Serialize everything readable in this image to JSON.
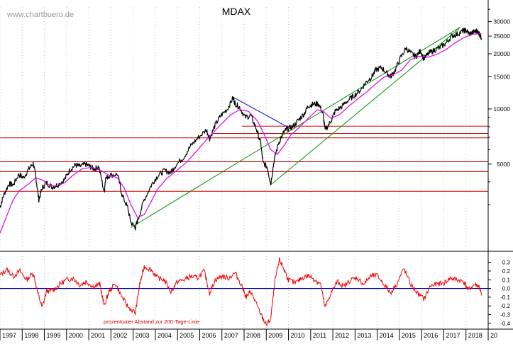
{
  "source_label": "www.chartbuero.de",
  "chart_data": [
    {
      "type": "line",
      "title": "MDAX",
      "scale": "log",
      "x_ticks": [
        "1997",
        "1998",
        "1999",
        "2000",
        "2001",
        "2002",
        "2003",
        "2004",
        "2005",
        "2006",
        "2007",
        "2008",
        "2009",
        "2010",
        "2011",
        "2012",
        "2013",
        "2014",
        "2015",
        "2016",
        "2017",
        "2018",
        "20"
      ],
      "y_tick_labels": [
        "30000",
        "25000",
        "20000",
        "15000",
        "10000",
        "5000"
      ],
      "y_tick_values": [
        30000,
        25000,
        20000,
        15000,
        10000,
        5000
      ],
      "y_minor_values": [
        3000,
        4000,
        6000,
        7000,
        8000,
        9000,
        35000
      ],
      "ylim": [
        1700,
        36000
      ],
      "xlim": [
        1997.0,
        2019.0
      ],
      "grid": true,
      "colors": {
        "price": "#000000",
        "sma": "#e000e0",
        "support_line": "#009000",
        "resistance_line": "#0000cc",
        "horizontal": "#cc0000"
      },
      "price_points": [
        [
          1997.0,
          2900
        ],
        [
          1997.15,
          3350
        ],
        [
          1997.4,
          3900
        ],
        [
          1997.6,
          3850
        ],
        [
          1997.85,
          4400
        ],
        [
          1998.05,
          4200
        ],
        [
          1998.3,
          4700
        ],
        [
          1998.5,
          5050
        ],
        [
          1998.62,
          4200
        ],
        [
          1998.75,
          3200
        ],
        [
          1998.9,
          3700
        ],
        [
          1999.1,
          3950
        ],
        [
          1999.35,
          3750
        ],
        [
          1999.6,
          3850
        ],
        [
          1999.9,
          4100
        ],
        [
          2000.15,
          4650
        ],
        [
          2000.4,
          4950
        ],
        [
          2000.6,
          4850
        ],
        [
          2000.85,
          5000
        ],
        [
          2001.05,
          4850
        ],
        [
          2001.25,
          4700
        ],
        [
          2001.45,
          4850
        ],
        [
          2001.7,
          3500
        ],
        [
          2001.75,
          4150
        ],
        [
          2001.95,
          4350
        ],
        [
          2002.3,
          4400
        ],
        [
          2002.5,
          3400
        ],
        [
          2002.75,
          2900
        ],
        [
          2002.9,
          2400
        ],
        [
          2003.1,
          2250
        ],
        [
          2003.2,
          2450
        ],
        [
          2003.5,
          3200
        ],
        [
          2003.85,
          3900
        ],
        [
          2004.1,
          4300
        ],
        [
          2004.4,
          4600
        ],
        [
          2004.7,
          4500
        ],
        [
          2004.9,
          4900
        ],
        [
          2005.3,
          5500
        ],
        [
          2005.6,
          6300
        ],
        [
          2005.9,
          6900
        ],
        [
          2006.3,
          7700
        ],
        [
          2006.45,
          6900
        ],
        [
          2006.7,
          8200
        ],
        [
          2006.95,
          9200
        ],
        [
          2007.25,
          10000
        ],
        [
          2007.5,
          11500
        ],
        [
          2007.6,
          10700
        ],
        [
          2007.8,
          10200
        ],
        [
          2008.05,
          9000
        ],
        [
          2008.3,
          9200
        ],
        [
          2008.55,
          7800
        ],
        [
          2008.75,
          6500
        ],
        [
          2008.85,
          5100
        ],
        [
          2009.05,
          4800
        ],
        [
          2009.2,
          3900
        ],
        [
          2009.35,
          5200
        ],
        [
          2009.55,
          6500
        ],
        [
          2009.8,
          7500
        ],
        [
          2009.95,
          7800
        ],
        [
          2010.2,
          8000
        ],
        [
          2010.45,
          8700
        ],
        [
          2010.7,
          9400
        ],
        [
          2010.9,
          10400
        ],
        [
          2011.1,
          10600
        ],
        [
          2011.35,
          10700
        ],
        [
          2011.55,
          9500
        ],
        [
          2011.65,
          7700
        ],
        [
          2011.9,
          8500
        ],
        [
          2012.1,
          9700
        ],
        [
          2012.4,
          10300
        ],
        [
          2012.7,
          11200
        ],
        [
          2012.95,
          11800
        ],
        [
          2013.25,
          12700
        ],
        [
          2013.5,
          14000
        ],
        [
          2013.75,
          15000
        ],
        [
          2013.95,
          16400
        ],
        [
          2014.2,
          16800
        ],
        [
          2014.45,
          15600
        ],
        [
          2014.6,
          15000
        ],
        [
          2014.8,
          16200
        ],
        [
          2015.05,
          19000
        ],
        [
          2015.3,
          21500
        ],
        [
          2015.55,
          20000
        ],
        [
          2015.75,
          19300
        ],
        [
          2015.95,
          20800
        ],
        [
          2016.1,
          18800
        ],
        [
          2016.35,
          20300
        ],
        [
          2016.6,
          21000
        ],
        [
          2016.85,
          21700
        ],
        [
          2017.1,
          22900
        ],
        [
          2017.35,
          25000
        ],
        [
          2017.6,
          25600
        ],
        [
          2017.85,
          26600
        ],
        [
          2018.0,
          26900
        ],
        [
          2018.15,
          25700
        ],
        [
          2018.35,
          26300
        ],
        [
          2018.5,
          26700
        ],
        [
          2018.6,
          25800
        ],
        [
          2018.7,
          24400
        ]
      ],
      "sma_points": [
        [
          1997.0,
          2100
        ],
        [
          1997.3,
          2600
        ],
        [
          1997.6,
          3200
        ],
        [
          1997.9,
          3600
        ],
        [
          1998.3,
          3900
        ],
        [
          1998.6,
          4200
        ],
        [
          1998.9,
          4100
        ],
        [
          1999.2,
          3850
        ],
        [
          1999.5,
          3800
        ],
        [
          1999.9,
          3950
        ],
        [
          2000.3,
          4350
        ],
        [
          2000.7,
          4700
        ],
        [
          2001.1,
          4800
        ],
        [
          2001.5,
          4650
        ],
        [
          2001.9,
          4350
        ],
        [
          2002.3,
          4200
        ],
        [
          2002.6,
          3700
        ],
        [
          2002.9,
          3000
        ],
        [
          2003.2,
          2550
        ],
        [
          2003.5,
          2650
        ],
        [
          2003.8,
          3100
        ],
        [
          2004.1,
          3650
        ],
        [
          2004.5,
          4150
        ],
        [
          2004.9,
          4550
        ],
        [
          2005.4,
          5100
        ],
        [
          2005.9,
          5950
        ],
        [
          2006.4,
          7000
        ],
        [
          2006.9,
          8100
        ],
        [
          2007.4,
          9300
        ],
        [
          2007.8,
          9900
        ],
        [
          2008.2,
          9700
        ],
        [
          2008.6,
          8600
        ],
        [
          2008.9,
          7300
        ],
        [
          2009.2,
          6000
        ],
        [
          2009.5,
          5650
        ],
        [
          2009.8,
          6300
        ],
        [
          2010.1,
          7200
        ],
        [
          2010.5,
          7950
        ],
        [
          2010.9,
          8900
        ],
        [
          2011.3,
          9900
        ],
        [
          2011.6,
          9650
        ],
        [
          2011.9,
          8900
        ],
        [
          2012.3,
          9300
        ],
        [
          2012.7,
          10300
        ],
        [
          2013.1,
          11300
        ],
        [
          2013.5,
          12300
        ],
        [
          2013.9,
          13600
        ],
        [
          2014.3,
          14900
        ],
        [
          2014.7,
          15300
        ],
        [
          2015.1,
          16300
        ],
        [
          2015.5,
          18600
        ],
        [
          2015.9,
          19400
        ],
        [
          2016.3,
          19200
        ],
        [
          2016.7,
          19900
        ],
        [
          2017.1,
          21100
        ],
        [
          2017.5,
          22900
        ],
        [
          2017.9,
          24500
        ],
        [
          2018.3,
          25600
        ],
        [
          2018.7,
          25700
        ]
      ],
      "support_lines": [
        {
          "from": [
            2002.9,
            2250
          ],
          "to": [
            2017.75,
            28000
          ]
        },
        {
          "from": [
            2009.2,
            3850
          ],
          "to": [
            2017.7,
            27500
          ]
        }
      ],
      "resistance_lines": [
        {
          "from": [
            2007.5,
            11600
          ],
          "to": [
            2010.1,
            7800
          ]
        }
      ],
      "horizontal_levels": [
        {
          "value": 8050,
          "x_start": 2007.9
        },
        {
          "value": 7350,
          "x_start": 2006.6
        },
        {
          "value": 6950,
          "x_start": 1997.0
        },
        {
          "value": 5150,
          "x_start": 1997.0
        },
        {
          "value": 4550,
          "x_start": 1997.0
        },
        {
          "value": 3550,
          "x_start": 1997.0
        }
      ]
    },
    {
      "type": "line",
      "annotation": "prozentualer Abstand zur 200-Tage-Linie",
      "y_tick_labels": [
        "0.3",
        "0.2",
        "0.1",
        "0.0",
        "-0.1",
        "-0.2",
        "-0.3",
        "-0.4"
      ],
      "y_tick_values": [
        0.3,
        0.2,
        0.1,
        0.0,
        -0.1,
        -0.2,
        -0.3,
        -0.4
      ],
      "ylim": [
        -0.45,
        0.37
      ],
      "baseline": 0.0,
      "colors": {
        "oscillator": "#ee0000",
        "baseline": "#0000cc"
      },
      "oscillator_points": [
        [
          1997.0,
          0.15
        ],
        [
          1997.3,
          0.22
        ],
        [
          1997.6,
          0.14
        ],
        [
          1997.9,
          0.2
        ],
        [
          1998.2,
          0.1
        ],
        [
          1998.5,
          0.18
        ],
        [
          1998.7,
          -0.05
        ],
        [
          1998.9,
          -0.22
        ],
        [
          1999.1,
          -0.03
        ],
        [
          1999.4,
          -0.02
        ],
        [
          1999.7,
          0.05
        ],
        [
          2000.0,
          0.1
        ],
        [
          2000.3,
          0.12
        ],
        [
          2000.6,
          0.04
        ],
        [
          2000.9,
          0.08
        ],
        [
          2001.2,
          0.02
        ],
        [
          2001.5,
          0.05
        ],
        [
          2001.7,
          -0.2
        ],
        [
          2001.9,
          -0.04
        ],
        [
          2002.2,
          0.06
        ],
        [
          2002.5,
          -0.1
        ],
        [
          2002.8,
          -0.22
        ],
        [
          2003.1,
          -0.28
        ],
        [
          2003.3,
          0.05
        ],
        [
          2003.5,
          0.25
        ],
        [
          2003.8,
          0.22
        ],
        [
          2004.1,
          0.12
        ],
        [
          2004.4,
          0.1
        ],
        [
          2004.7,
          -0.04
        ],
        [
          2005.0,
          0.08
        ],
        [
          2005.3,
          0.1
        ],
        [
          2005.6,
          0.14
        ],
        [
          2005.9,
          0.12
        ],
        [
          2006.2,
          0.2
        ],
        [
          2006.45,
          -0.05
        ],
        [
          2006.7,
          0.1
        ],
        [
          2007.0,
          0.14
        ],
        [
          2007.3,
          0.12
        ],
        [
          2007.6,
          0.18
        ],
        [
          2007.9,
          0.03
        ],
        [
          2008.1,
          -0.1
        ],
        [
          2008.3,
          -0.03
        ],
        [
          2008.5,
          -0.15
        ],
        [
          2008.8,
          -0.32
        ],
        [
          2009.0,
          -0.42
        ],
        [
          2009.2,
          -0.35
        ],
        [
          2009.4,
          0.1
        ],
        [
          2009.6,
          0.33
        ],
        [
          2009.8,
          0.22
        ],
        [
          2010.0,
          0.1
        ],
        [
          2010.3,
          0.06
        ],
        [
          2010.6,
          0.12
        ],
        [
          2010.9,
          0.15
        ],
        [
          2011.2,
          0.1
        ],
        [
          2011.45,
          0.05
        ],
        [
          2011.65,
          -0.22
        ],
        [
          2011.9,
          -0.06
        ],
        [
          2012.2,
          0.08
        ],
        [
          2012.5,
          0.02
        ],
        [
          2012.8,
          0.1
        ],
        [
          2013.1,
          0.12
        ],
        [
          2013.4,
          0.05
        ],
        [
          2013.7,
          0.14
        ],
        [
          2014.0,
          0.15
        ],
        [
          2014.3,
          0.05
        ],
        [
          2014.6,
          -0.05
        ],
        [
          2014.9,
          0.06
        ],
        [
          2015.2,
          0.23
        ],
        [
          2015.5,
          0.05
        ],
        [
          2015.8,
          -0.05
        ],
        [
          2016.1,
          -0.12
        ],
        [
          2016.4,
          0.03
        ],
        [
          2016.7,
          0.05
        ],
        [
          2017.0,
          0.06
        ],
        [
          2017.3,
          0.12
        ],
        [
          2017.6,
          0.1
        ],
        [
          2017.9,
          0.08
        ],
        [
          2018.1,
          -0.02
        ],
        [
          2018.4,
          0.05
        ],
        [
          2018.6,
          0.02
        ],
        [
          2018.7,
          -0.08
        ]
      ]
    }
  ]
}
